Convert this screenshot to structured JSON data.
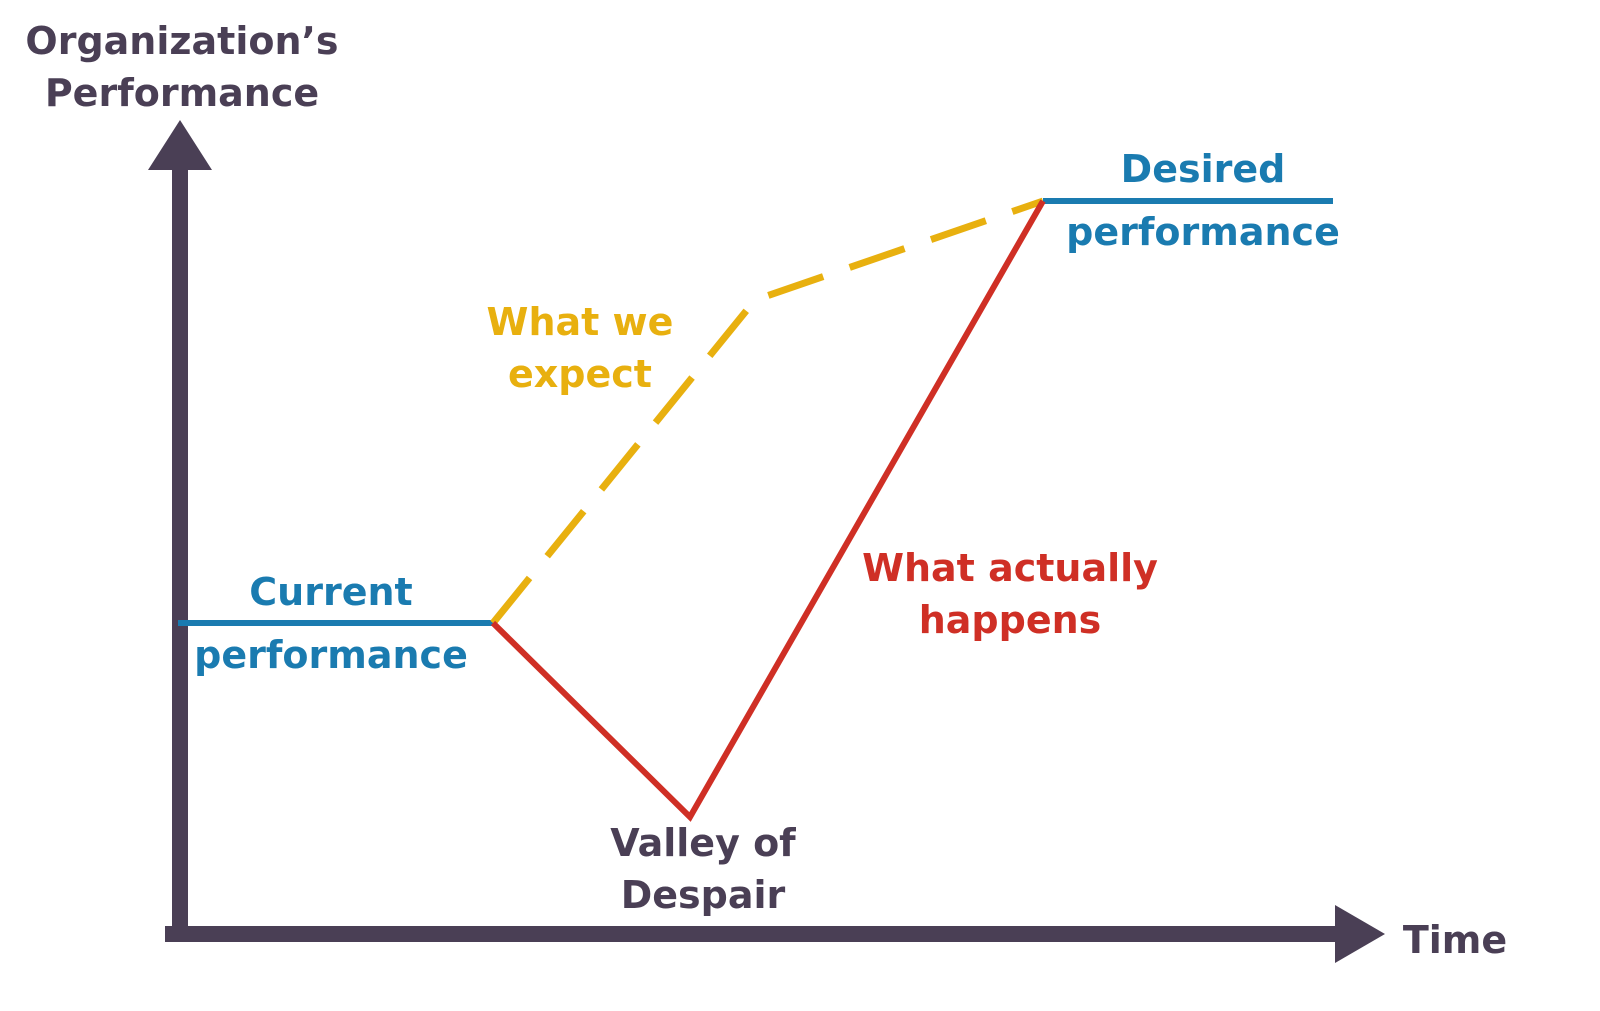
{
  "axes": {
    "y_label_line1": "Organization’s",
    "y_label_line2": "Performance",
    "x_label": "Time"
  },
  "labels": {
    "current_line1": "Current",
    "current_line2": "performance",
    "desired_line1": "Desired",
    "desired_line2": "performance",
    "expect_line1": "What we",
    "expect_line2": "expect",
    "actual_line1": "What actually",
    "actual_line2": "happens",
    "valley_line1": "Valley of",
    "valley_line2": "Despair"
  },
  "colors": {
    "axis": "#4a3f55",
    "performance_level": "#1a7bb0",
    "expected_path": "#e8b00f",
    "actual_path": "#cf2f25",
    "valley_text": "#4a3f55"
  }
}
